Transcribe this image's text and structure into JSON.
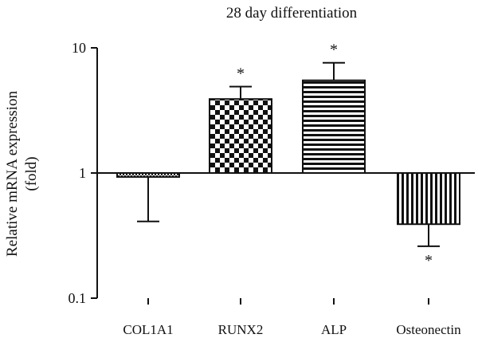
{
  "chart_data": {
    "type": "bar",
    "title": "28 day differentiation",
    "xlabel": "",
    "ylabel_line1": "Relative mRNA expression",
    "ylabel_line2": "(fold)",
    "yscale": "log",
    "ylim": [
      0.1,
      10
    ],
    "baseline": 1,
    "yticks": [
      {
        "value": 0.1,
        "label": "0.1"
      },
      {
        "value": 1,
        "label": "1"
      },
      {
        "value": 10,
        "label": "10"
      }
    ],
    "categories": [
      "COL1A1",
      "RUNX2",
      "ALP",
      "Osteonectin"
    ],
    "values": [
      0.93,
      3.9,
      5.5,
      0.39
    ],
    "error_values": [
      0.41,
      4.9,
      7.6,
      0.26
    ],
    "significance": [
      "",
      "*",
      "*",
      "*"
    ],
    "patterns": [
      "dense-check",
      "checkerboard",
      "horizontal-stripes",
      "vertical-stripes"
    ],
    "grid": false
  }
}
